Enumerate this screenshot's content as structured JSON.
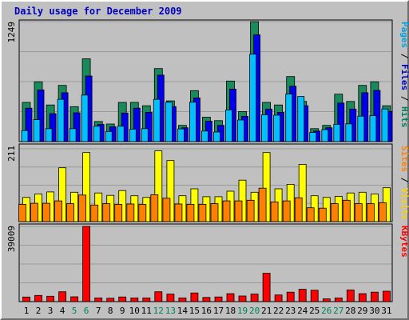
{
  "chart_data": {
    "type": "bar",
    "title": "Daily usage for December 2009",
    "categories": [
      "1",
      "2",
      "3",
      "4",
      "5",
      "6",
      "7",
      "8",
      "9",
      "10",
      "11",
      "12",
      "13",
      "14",
      "15",
      "16",
      "17",
      "18",
      "19",
      "20",
      "21",
      "22",
      "23",
      "24",
      "25",
      "26",
      "27",
      "28",
      "29",
      "30",
      "31"
    ],
    "weekend_days": [
      "5",
      "6",
      "12",
      "13",
      "19",
      "20",
      "26",
      "27"
    ],
    "panels": [
      {
        "name": "top",
        "ymax_label": "1249",
        "ymax": 1249,
        "legend": [
          {
            "text": "Pages",
            "color": "#00a0e0"
          },
          {
            "text": " / ",
            "color": "#000000"
          },
          {
            "text": "Files",
            "color": "#0000c0"
          },
          {
            "text": " / ",
            "color": "#000000"
          },
          {
            "text": "Hits",
            "color": "#00805a"
          }
        ],
        "series": [
          {
            "name": "Hits",
            "color": "#1b8a5a",
            "values": [
              408,
              623,
              381,
              585,
              364,
              862,
              209,
              183,
              408,
              408,
              373,
              760,
              424,
              169,
              530,
              254,
              218,
              630,
              313,
              1249,
              408,
              381,
              677,
              418,
              135,
              169,
              494,
              418,
              585,
              623,
              373
            ]
          },
          {
            "name": "Files",
            "color": "#0000ee",
            "values": [
              348,
              538,
              291,
              509,
              300,
              683,
              179,
              154,
              297,
              348,
              305,
              692,
              364,
              144,
              455,
              212,
              169,
              546,
              263,
              1112,
              339,
              305,
              576,
              373,
              110,
              144,
              401,
              339,
              509,
              533,
              314
            ]
          },
          {
            "name": "Pages",
            "color": "#00c0ff",
            "values": [
              115,
              229,
              135,
              440,
              135,
              485,
              160,
              105,
              160,
              130,
              135,
              440,
              410,
              132,
              410,
              110,
              100,
              330,
              225,
              910,
              280,
              275,
              495,
              470,
              95,
              125,
              180,
              185,
              265,
              270,
              340
            ]
          }
        ]
      },
      {
        "name": "middle",
        "ymax_label": "211",
        "ymax": 211,
        "legend": [
          {
            "text": "Sites",
            "color": "#ff8000"
          },
          {
            "text": " / ",
            "color": "#000000"
          },
          {
            "text": "Visits",
            "color": "#ffd000"
          }
        ],
        "series": [
          {
            "name": "Visits",
            "color": "#ffff00",
            "values": [
              70,
              80,
              86,
              156,
              85,
              200,
              83,
              76,
              90,
              75,
              70,
              205,
              177,
              75,
              95,
              72,
              72,
              88,
              120,
              85,
              200,
              95,
              108,
              166,
              75,
              70,
              73,
              83,
              85,
              80,
              98
            ]
          },
          {
            "name": "Sites",
            "color": "#ff8000",
            "values": [
              50,
              53,
              53,
              60,
              52,
              77,
              48,
              52,
              50,
              51,
              50,
              78,
              68,
              51,
              50,
              50,
              52,
              60,
              60,
              62,
              97,
              57,
              60,
              69,
              40,
              39,
              52,
              62,
              52,
              52,
              55
            ]
          }
        ]
      },
      {
        "name": "bottom",
        "ymax_label": "39009",
        "ymax": 39009,
        "legend": [
          {
            "text": "KBytes",
            "color": "#ff0000"
          }
        ],
        "series": [
          {
            "name": "KBytes",
            "color": "#ff0000",
            "values": [
              2350,
              3200,
              2800,
              5100,
              2500,
              39009,
              1900,
              1750,
              2400,
              1900,
              1900,
              5100,
              3900,
              1900,
              4500,
              2150,
              2400,
              4100,
              2900,
              3900,
              14700,
              3450,
              4900,
              6400,
              5900,
              1400,
              1900,
              6000,
              4100,
              4900,
              5400
            ]
          }
        ]
      }
    ]
  }
}
